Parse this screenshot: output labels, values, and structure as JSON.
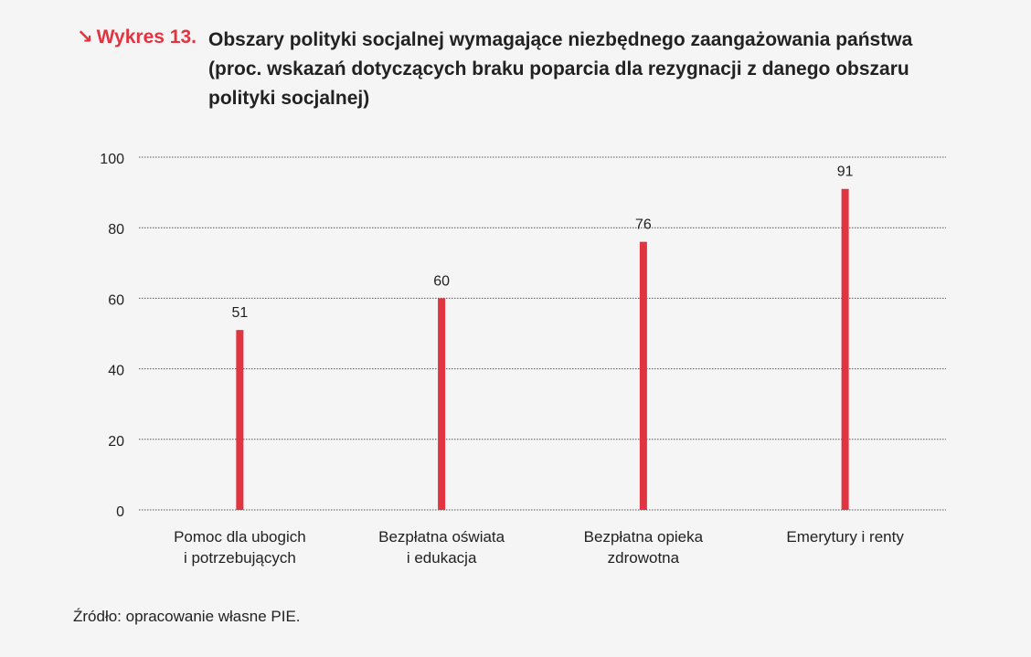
{
  "header": {
    "figure_label": "Wykres 13.",
    "figure_icon": "arrow-down-right-icon",
    "title": "Obszary polityki socjalnej wymagające niezbędnego zaangażowania państwa (proc. wskazań dotyczących braku poparcia dla rezygnacji z danego obszaru polityki socjalnej)"
  },
  "colors": {
    "accent": "#e03440",
    "bar": "#e03440",
    "grid": "#555555",
    "text": "#222222",
    "background": "#f5f5f5"
  },
  "chart_data": {
    "type": "bar",
    "title": "Obszary polityki socjalnej wymagające niezbędnego zaangażowania państwa (proc. wskazań dotyczących braku poparcia dla rezygnacji z danego obszaru polityki socjalnej)",
    "categories": [
      [
        "Pomoc dla ubogich",
        "i potrzebujących"
      ],
      [
        "Bezpłatna oświata",
        "i edukacja"
      ],
      [
        "Bezpłatna opieka",
        "zdrowotna"
      ],
      [
        "Emerytury i renty"
      ]
    ],
    "values": [
      51,
      60,
      76,
      91
    ],
    "data_labels": [
      "51",
      "60",
      "76",
      "91"
    ],
    "ylim": [
      0,
      100
    ],
    "yticks": [
      0,
      20,
      40,
      60,
      80,
      100
    ],
    "grid": "horizontal dotted",
    "legend": "none"
  },
  "source": "Źródło: opracowanie własne PIE."
}
